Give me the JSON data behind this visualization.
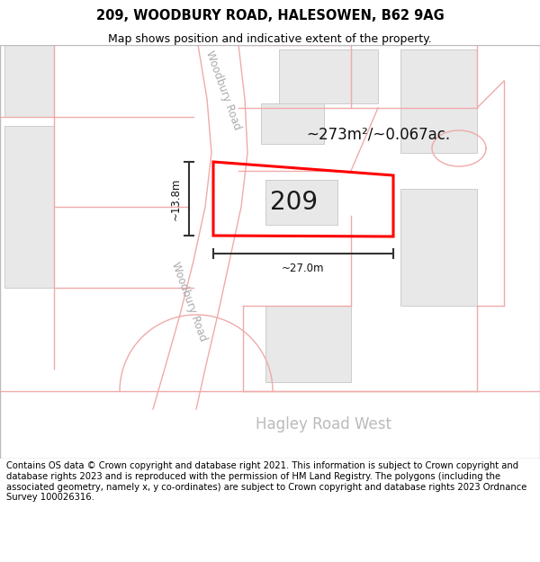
{
  "title_line1": "209, WOODBURY ROAD, HALESOWEN, B62 9AG",
  "title_line2": "Map shows position and indicative extent of the property.",
  "footer_text": "Contains OS data © Crown copyright and database right 2021. This information is subject to Crown copyright and database rights 2023 and is reproduced with the permission of HM Land Registry. The polygons (including the associated geometry, namely x, y co-ordinates) are subject to Crown copyright and database rights 2023 Ordnance Survey 100026316.",
  "road_label_upper": "Woodbury Road",
  "road_label_lower": "Woodbury Road",
  "road_label_hagley": "Hagley Road West",
  "property_label": "209",
  "area_label": "~273m²/~0.067ac.",
  "width_label": "~27.0m",
  "height_label": "~13.8m",
  "road_pink": "#f0aaaa",
  "building_fill": "#e8e8e8",
  "building_outline": "#cccccc",
  "highlight_outline": "#ff0000",
  "highlight_lw": 2.2,
  "title_fontsize": 10.5,
  "subtitle_fontsize": 9,
  "footer_fontsize": 7.2
}
